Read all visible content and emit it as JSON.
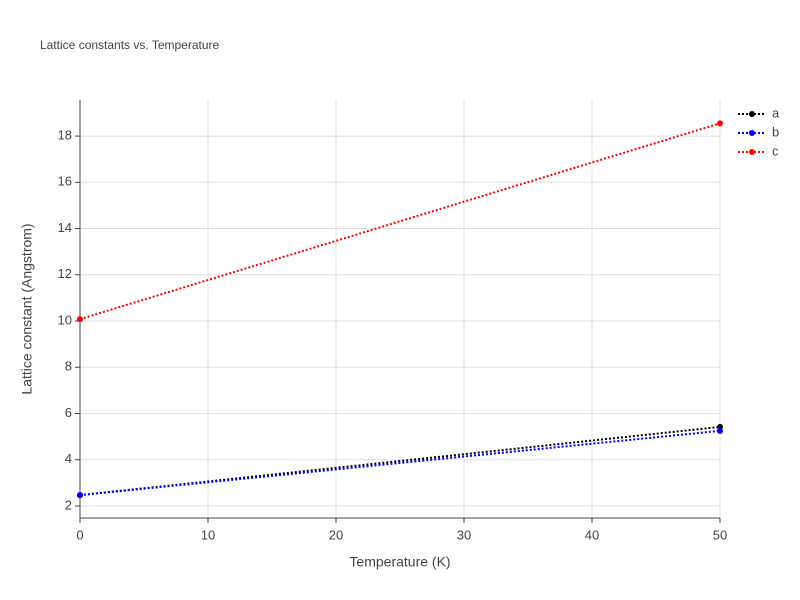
{
  "chart_data": {
    "type": "line",
    "title": "Lattice constants vs. Temperature",
    "xlabel": "Temperature (K)",
    "ylabel": "Lattice constant (Angstrom)",
    "x": [
      0,
      50
    ],
    "series": [
      {
        "name": "a",
        "color": "#000000",
        "values": [
          2.47,
          5.42
        ]
      },
      {
        "name": "b",
        "color": "#0000ff",
        "values": [
          2.47,
          5.25
        ]
      },
      {
        "name": "c",
        "color": "#ff0000",
        "values": [
          10.08,
          18.55
        ]
      }
    ],
    "xlim": [
      0,
      50
    ],
    "xticks": [
      0,
      10,
      20,
      30,
      40,
      50
    ],
    "ylim": [
      1.48,
      19.56
    ],
    "yticks": [
      2,
      4,
      6,
      8,
      10,
      12,
      14,
      16,
      18
    ],
    "grid": true,
    "legend": "right"
  }
}
